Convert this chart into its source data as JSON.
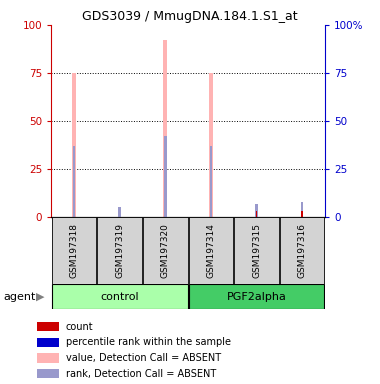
{
  "title": "GDS3039 / MmugDNA.184.1.S1_at",
  "samples": [
    "GSM197318",
    "GSM197319",
    "GSM197320",
    "GSM197314",
    "GSM197315",
    "GSM197316"
  ],
  "pink_bars": [
    75,
    0,
    92,
    75,
    0,
    0
  ],
  "blue_bars": [
    37,
    5,
    42,
    37,
    7,
    8
  ],
  "small_red_bars": [
    0,
    0,
    0,
    0,
    3,
    3
  ],
  "ylim": [
    0,
    100
  ],
  "yticks": [
    0,
    25,
    50,
    75,
    100
  ],
  "pink_color": "#FFB3B3",
  "blue_color": "#9999CC",
  "red_color": "#CC0000",
  "left_axis_color": "#CC0000",
  "right_axis_color": "#0000CC",
  "bg_label": "#D3D3D3",
  "bg_group_light": "#AAFFAA",
  "bg_group_dark": "#44CC66",
  "control_samples": [
    0,
    1,
    2
  ],
  "pgf_samples": [
    3,
    4,
    5
  ],
  "legend_colors": [
    "#CC0000",
    "#0000CC",
    "#FFB3B3",
    "#9999CC"
  ],
  "legend_labels": [
    "count",
    "percentile rank within the sample",
    "value, Detection Call = ABSENT",
    "rank, Detection Call = ABSENT"
  ]
}
